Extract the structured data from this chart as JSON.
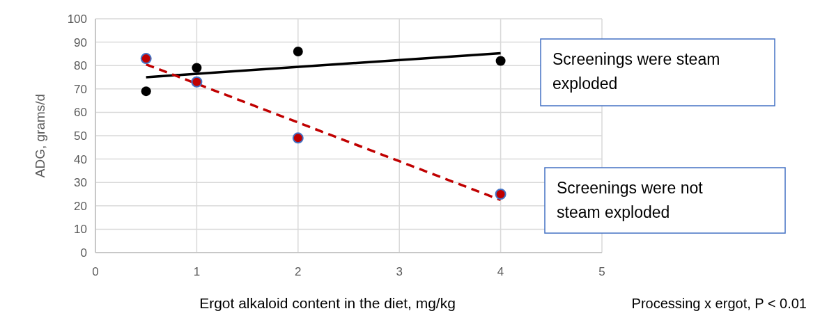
{
  "chart_data": {
    "type": "scatter",
    "xlabel": "Ergot alkaloid content in the diet, mg/kg",
    "ylabel": "ADG, grams/d",
    "xlim": [
      0,
      5
    ],
    "xticks": [
      0,
      1,
      2,
      3,
      4,
      5
    ],
    "ylim": [
      0,
      100
    ],
    "yticks": [
      0,
      10,
      20,
      30,
      40,
      50,
      60,
      70,
      80,
      90,
      100
    ],
    "grid": true,
    "marker": "circle",
    "series": [
      {
        "color": "#000000",
        "x": [
          0.5,
          1,
          2,
          4
        ],
        "values": [
          69,
          79,
          86,
          82
        ]
      },
      {
        "color": "#c00000",
        "x": [
          0.5,
          1,
          2,
          4
        ],
        "values": [
          83,
          73,
          49,
          25
        ]
      },
      {
        "type": "line",
        "color": "#000000",
        "line_style": "solid",
        "marker": "none",
        "x": [
          0.5,
          4
        ],
        "values": [
          75,
          85.3
        ]
      },
      {
        "type": "line",
        "color": "#c00000",
        "line_style": "dashed",
        "marker": "none",
        "x": [
          0.5,
          4
        ],
        "values": [
          80.5,
          22.5
        ]
      }
    ],
    "annotations": [
      "Screenings were steam exploded",
      "Screenings were not steam exploded",
      "Processing  x ergot, P < 0.01"
    ]
  }
}
